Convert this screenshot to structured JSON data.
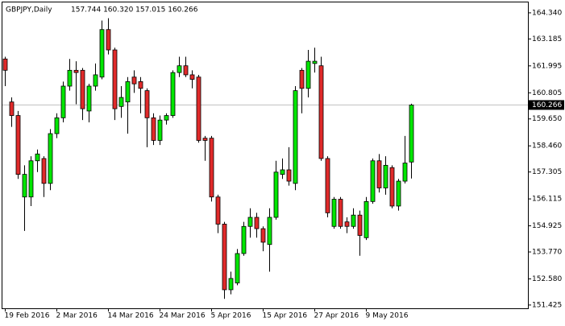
{
  "chart_data": {
    "type": "candlestick",
    "title": "GBPJPY,Daily",
    "quote": "157.744 160.320 157.015 160.266",
    "categories": [
      "19 Feb 2016",
      null,
      null,
      null,
      null,
      null,
      null,
      null,
      "2 Mar 2016",
      null,
      null,
      null,
      null,
      null,
      null,
      null,
      "14 Mar 2016",
      null,
      null,
      null,
      null,
      null,
      null,
      null,
      "24 Mar 2016",
      null,
      null,
      null,
      null,
      null,
      null,
      null,
      "5 Apr 2016",
      null,
      null,
      null,
      null,
      null,
      null,
      null,
      "15 Apr 2016",
      null,
      null,
      null,
      null,
      null,
      null,
      null,
      "27 Apr 2016",
      null,
      null,
      null,
      null,
      null,
      null,
      null,
      "9 May 2016",
      null,
      null,
      null,
      null,
      null,
      null,
      null
    ],
    "open": [
      162.3,
      160.4,
      159.8,
      156.2,
      156.2,
      157.8,
      157.9,
      156.8,
      159.0,
      159.7,
      161.1,
      161.8,
      161.8,
      160.0,
      161.1,
      161.5,
      163.6,
      162.7,
      160.2,
      160.4,
      161.5,
      161.3,
      160.9,
      159.7,
      158.7,
      159.6,
      159.8,
      161.7,
      162.0,
      161.6,
      161.5,
      158.8,
      158.8,
      156.2,
      155.0,
      152.1,
      152.4,
      153.7,
      154.9,
      155.3,
      154.8,
      154.1,
      155.3,
      157.2,
      157.4,
      156.8,
      161.8,
      161.0,
      162.1,
      162.0,
      157.9,
      154.9,
      156.1,
      155.1,
      154.9,
      155.4,
      154.4,
      156.0,
      157.8,
      156.6,
      157.5,
      155.8,
      156.9,
      157.744
    ],
    "high": [
      162.4,
      160.6,
      160.0,
      157.6,
      158.0,
      158.3,
      158.0,
      159.2,
      159.9,
      161.3,
      162.3,
      162.2,
      161.9,
      161.2,
      162.1,
      164.0,
      164.1,
      162.8,
      161.1,
      161.5,
      161.8,
      161.5,
      161.0,
      159.9,
      159.8,
      159.9,
      161.8,
      162.4,
      162.4,
      161.8,
      161.6,
      158.9,
      158.9,
      156.3,
      155.1,
      152.9,
      153.9,
      155.1,
      155.7,
      155.5,
      154.9,
      155.7,
      157.8,
      157.9,
      158.4,
      161.1,
      161.9,
      162.7,
      162.8,
      162.4,
      158.0,
      156.2,
      156.2,
      155.3,
      155.7,
      155.6,
      156.2,
      157.9,
      158.1,
      158.0,
      157.6,
      157.0,
      158.9,
      160.32
    ],
    "low": [
      161.1,
      159.3,
      157.0,
      154.7,
      155.8,
      157.3,
      156.2,
      156.5,
      158.8,
      159.5,
      160.9,
      160.3,
      159.6,
      159.5,
      160.9,
      161.4,
      162.5,
      159.6,
      159.7,
      159.0,
      160.8,
      159.9,
      158.4,
      158.5,
      158.5,
      159.4,
      159.7,
      161.5,
      161.5,
      161.0,
      158.6,
      157.8,
      156.0,
      154.6,
      151.7,
      151.9,
      152.3,
      153.6,
      154.4,
      154.4,
      153.8,
      152.9,
      155.2,
      157.0,
      156.7,
      156.5,
      159.9,
      160.6,
      161.7,
      157.8,
      155.3,
      154.8,
      154.8,
      154.6,
      154.8,
      153.6,
      154.3,
      155.9,
      156.4,
      156.3,
      155.7,
      155.6,
      156.8,
      157.015
    ],
    "close": [
      161.8,
      159.8,
      157.2,
      157.2,
      157.8,
      158.1,
      156.8,
      159.0,
      159.7,
      161.1,
      161.8,
      161.7,
      160.1,
      161.1,
      161.6,
      163.6,
      162.7,
      160.1,
      160.6,
      161.3,
      161.2,
      161.0,
      159.7,
      158.7,
      159.6,
      159.8,
      161.7,
      162.0,
      161.6,
      161.4,
      158.7,
      158.7,
      156.2,
      155.0,
      152.1,
      152.6,
      153.7,
      154.9,
      155.3,
      154.8,
      154.2,
      155.3,
      157.3,
      157.4,
      156.9,
      160.9,
      161.0,
      162.2,
      162.2,
      157.9,
      155.5,
      156.1,
      154.9,
      154.9,
      155.4,
      154.5,
      156.0,
      157.8,
      156.6,
      157.6,
      155.8,
      156.9,
      157.7,
      160.266
    ],
    "up_color": "#00e600",
    "down_color": "#e02a2a",
    "ylim": [
      151.28,
      164.8
    ],
    "yticks": [
      {
        "value": 151.425,
        "label": "151.425"
      },
      {
        "value": 152.58,
        "label": "152.580"
      },
      {
        "value": 153.77,
        "label": "153.770"
      },
      {
        "value": 154.925,
        "label": "154.925"
      },
      {
        "value": 156.115,
        "label": "156.115"
      },
      {
        "value": 157.305,
        "label": "157.305"
      },
      {
        "value": 158.46,
        "label": "158.460"
      },
      {
        "value": 159.65,
        "label": "159.650"
      },
      {
        "value": 160.805,
        "label": "160.805"
      },
      {
        "value": 161.995,
        "label": "161.995"
      },
      {
        "value": 163.185,
        "label": "163.185"
      },
      {
        "value": 164.34,
        "label": "164.340"
      }
    ]
  }
}
